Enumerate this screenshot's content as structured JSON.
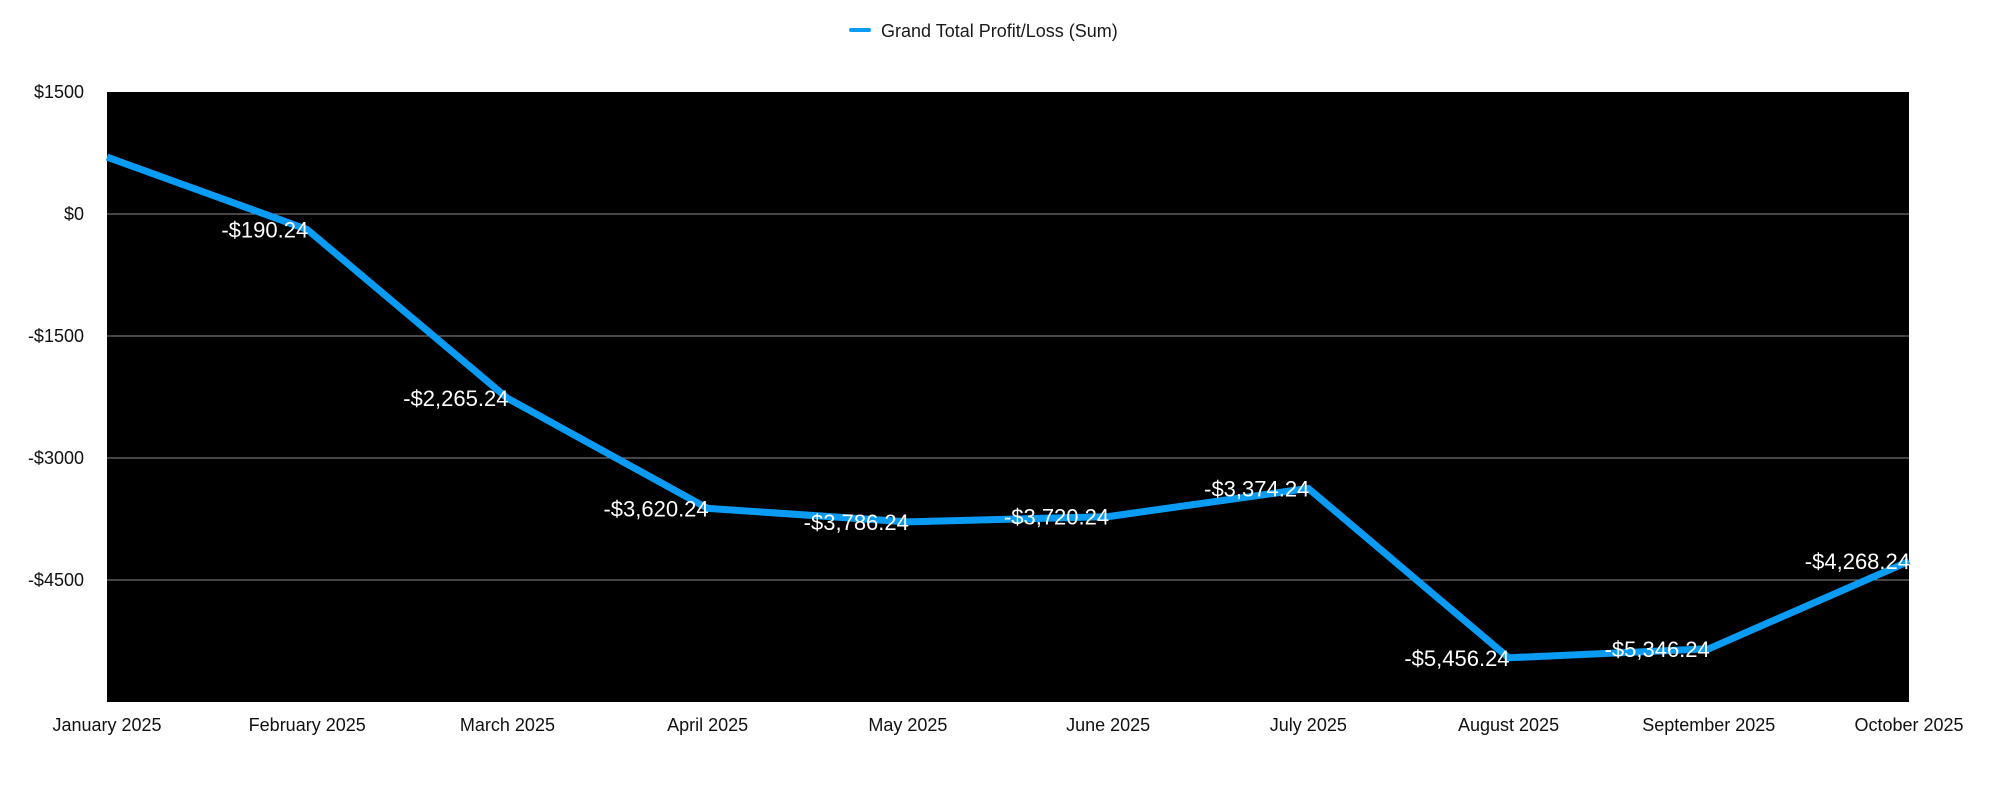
{
  "chart_data": {
    "type": "line",
    "title": "",
    "xlabel": "",
    "ylabel": "",
    "categories": [
      "January 2025",
      "February 2025",
      "March 2025",
      "April 2025",
      "May 2025",
      "June 2025",
      "July 2025",
      "August 2025",
      "September 2025",
      "October 2025"
    ],
    "series": [
      {
        "name": "Grand Total Profit/Loss (Sum)",
        "color": "#0a9cf5",
        "values": [
          700,
          -190.24,
          -2265.24,
          -3620.24,
          -3786.24,
          -3720.24,
          -3374.24,
          -5456.24,
          -5346.24,
          -4268.24
        ],
        "labels": [
          "",
          "-$190.24",
          "-$2,265.24",
          "-$3,620.24",
          "-$3,786.24",
          "-$3,720.24",
          "-$3,374.24",
          "-$5,456.24",
          "-$5,346.24",
          "-$4,268.24"
        ]
      }
    ],
    "ylim": [
      -6000,
      1500
    ],
    "yticks": [
      1500,
      0,
      -1500,
      -3000,
      -4500
    ],
    "ytick_labels": [
      "$1500",
      "$0",
      "-$1500",
      "-$3000",
      "-$4500"
    ],
    "grid": true,
    "legend_position": "top-center",
    "plot_background": "#000000"
  }
}
